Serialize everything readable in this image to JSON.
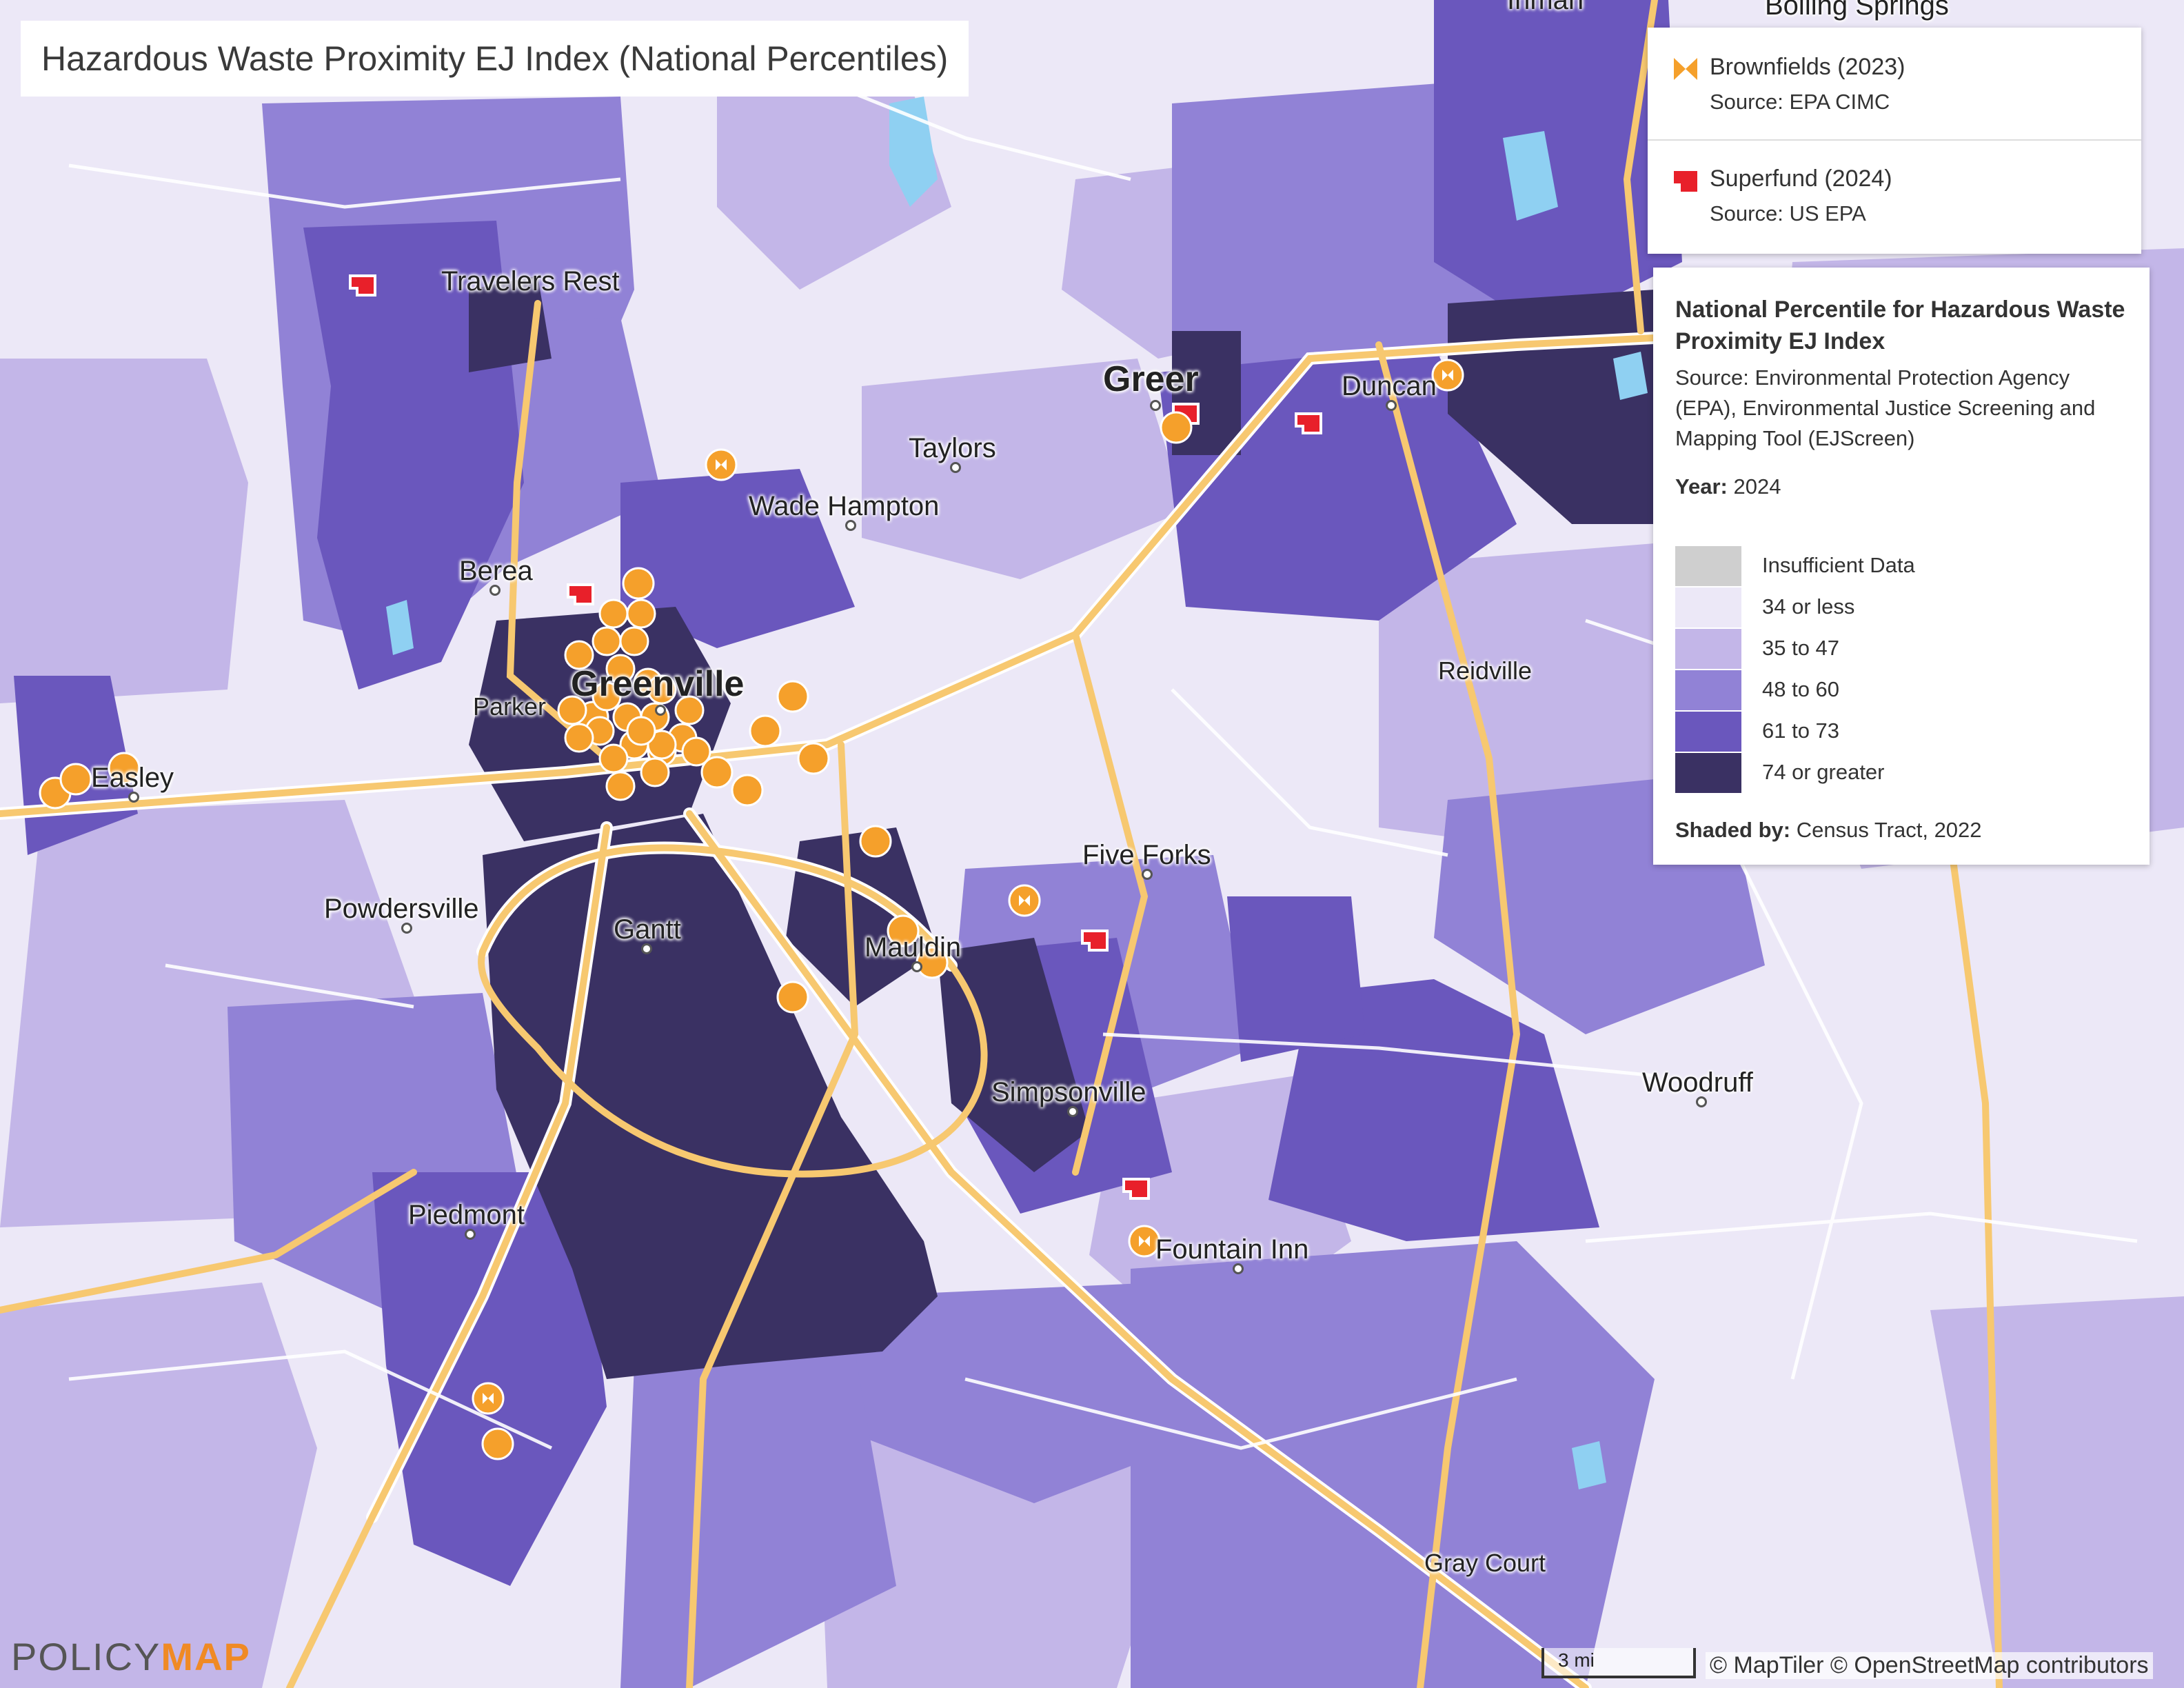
{
  "title": "Hazardous Waste Proximity EJ Index (National Percentiles)",
  "point_layers": [
    {
      "name": "Brownfields (2023)",
      "source": "Source: EPA CIMC",
      "icon": "brownfield-bowtie-icon",
      "color": "#f5a02b"
    },
    {
      "name": "Superfund (2024)",
      "source": "Source: US EPA",
      "icon": "superfund-flag-icon",
      "color": "#e8202a"
    }
  ],
  "legend": {
    "title": "National Percentile for Hazardous Waste Proximity EJ Index",
    "source": "Source: Environmental Protection Agency (EPA), Environmental Justice Screening and Mapping Tool (EJScreen)",
    "year_label": "Year:",
    "year": "2024",
    "classes": [
      {
        "label": "Insufficient Data",
        "color": "#cfcfcf"
      },
      {
        "label": "34 or less",
        "color": "#ece8f7"
      },
      {
        "label": "35 to 47",
        "color": "#c3b6e8"
      },
      {
        "label": "48 to 60",
        "color": "#9182d6"
      },
      {
        "label": "61 to 73",
        "color": "#6a57bd"
      },
      {
        "label": "74 or greater",
        "color": "#3a3163"
      }
    ],
    "shaded_label": "Shaded by:",
    "shaded_by": "Census Tract, 2022"
  },
  "places": [
    {
      "name": "Travelers Rest",
      "size": "med"
    },
    {
      "name": "Greer",
      "size": "big"
    },
    {
      "name": "Duncan",
      "size": "med"
    },
    {
      "name": "Taylors",
      "size": "med"
    },
    {
      "name": "Wade Hampton",
      "size": "med"
    },
    {
      "name": "Berea",
      "size": "med"
    },
    {
      "name": "Greenville",
      "size": "big"
    },
    {
      "name": "Parker",
      "size": "small"
    },
    {
      "name": "Easley",
      "size": "med"
    },
    {
      "name": "Reidville",
      "size": "small"
    },
    {
      "name": "Five Forks",
      "size": "med"
    },
    {
      "name": "Powdersville",
      "size": "med"
    },
    {
      "name": "Gantt",
      "size": "med"
    },
    {
      "name": "Mauldin",
      "size": "med"
    },
    {
      "name": "Simpsonville",
      "size": "med"
    },
    {
      "name": "Woodruff",
      "size": "med"
    },
    {
      "name": "Piedmont",
      "size": "med"
    },
    {
      "name": "Fountain Inn",
      "size": "med"
    },
    {
      "name": "Gray Court",
      "size": "small"
    },
    {
      "name": "Inman",
      "size": "med"
    },
    {
      "name": "Boiling Springs",
      "size": "med"
    }
  ],
  "logo": {
    "part1": "POLICY",
    "part2": "MAP"
  },
  "scale": "3 mi",
  "attribution": "© MapTiler © OpenStreetMap contributors"
}
